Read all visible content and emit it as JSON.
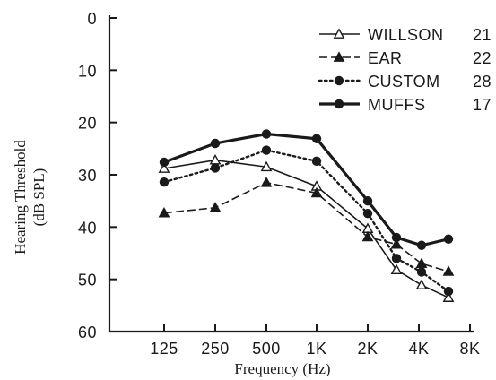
{
  "chart_data": {
    "type": "line",
    "title": "",
    "xlabel": "Frequency (Hz)",
    "ylabel_line1": "Hearing Threshold",
    "ylabel_line2": "(dB SPL)",
    "x_tick_labels": [
      "125",
      "250",
      "500",
      "1K",
      "2K",
      "4K",
      "8K"
    ],
    "y_ticks": [
      0,
      10,
      20,
      30,
      40,
      50,
      60
    ],
    "ylim": [
      0,
      60
    ],
    "y_inverted": true,
    "categories": [
      "125",
      "250",
      "500",
      "1K",
      "2K",
      "3K",
      "4K",
      "6K"
    ],
    "series": [
      {
        "name": "WILLSON",
        "count": "21",
        "marker": "open-triangle",
        "line": "solid",
        "width": 1.6,
        "values": [
          28.8,
          27.2,
          28.5,
          32.2,
          40.3,
          48.2,
          51.1,
          53.5
        ]
      },
      {
        "name": "EAR",
        "count": "22",
        "marker": "filled-triangle",
        "line": "dashed",
        "width": 1.6,
        "values": [
          37.3,
          36.3,
          31.5,
          33.5,
          41.9,
          43.3,
          47.0,
          48.5
        ]
      },
      {
        "name": "CUSTOM",
        "count": "28",
        "marker": "filled-circle",
        "line": "dotted",
        "width": 2.4,
        "values": [
          31.4,
          28.7,
          25.3,
          27.4,
          37.4,
          46.0,
          48.6,
          52.3
        ]
      },
      {
        "name": "MUFFS",
        "count": "17",
        "marker": "filled-circle",
        "line": "solid",
        "width": 3.2,
        "values": [
          27.6,
          24.0,
          22.2,
          23.1,
          35.0,
          42.0,
          43.5,
          42.3
        ]
      }
    ],
    "legend_position": "top-right",
    "grid": false
  }
}
